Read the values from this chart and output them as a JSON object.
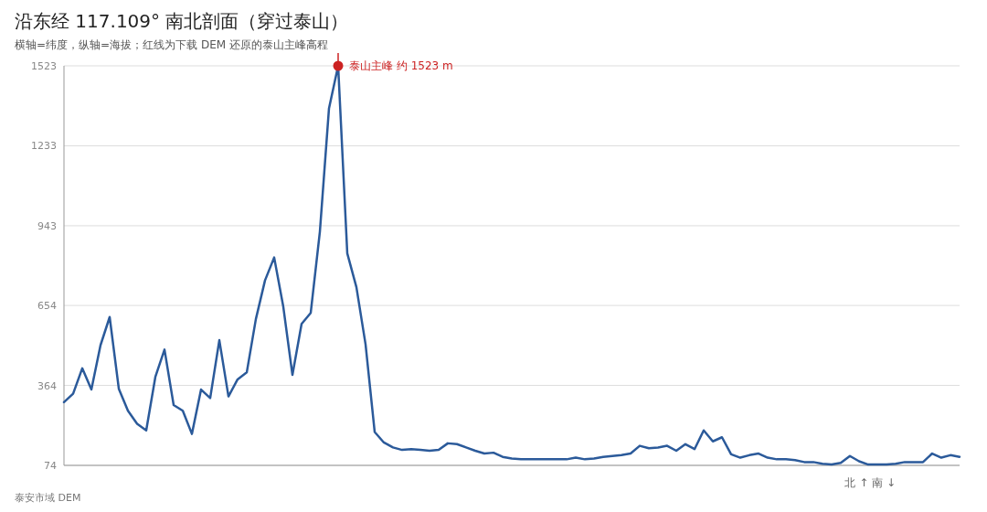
{
  "chart_data": {
    "type": "line",
    "title": "沿东经 117.109°  南北剖面（穿过泰山）",
    "subtitle": "横轴=纬度，纵轴=海拔；红线为下载 DEM 还原的泰山主峰高程",
    "xlabel": "北 ↑  南 ↓",
    "annotations": [
      "泰安市域 DEM"
    ],
    "categories": [
      null,
      null,
      null,
      null,
      null,
      null,
      null,
      null,
      null,
      null,
      null,
      null,
      null,
      null,
      null,
      null,
      null,
      null,
      null,
      null,
      null,
      null,
      null,
      null,
      null,
      null,
      null,
      null,
      null,
      null,
      null,
      null,
      null,
      null,
      null,
      null,
      null,
      null,
      null,
      null,
      null,
      null,
      null,
      null,
      null,
      null,
      null,
      null,
      null,
      null,
      null,
      null,
      null,
      null,
      null,
      null,
      null,
      null,
      null,
      null,
      null,
      null,
      null,
      null,
      null,
      null,
      null,
      null,
      null,
      null,
      null,
      null,
      null,
      null,
      null,
      null,
      null,
      null,
      null,
      null,
      null,
      null,
      null,
      null,
      null,
      null,
      null,
      null,
      null,
      null,
      null,
      null,
      null,
      null,
      null,
      null,
      null,
      null,
      null
    ],
    "series": [
      {
        "color": "#2b5a9a",
        "values": [
          303,
          334,
          426,
          349,
          510,
          612,
          352,
          272,
          225,
          201,
          395,
          494,
          293,
          272,
          188,
          349,
          318,
          528,
          324,
          386,
          411,
          605,
          745,
          828,
          649,
          402,
          587,
          627,
          921,
          1369,
          1523,
          843,
          720,
          513,
          195,
          157,
          139,
          130,
          133,
          130,
          127,
          130,
          154,
          151,
          139,
          127,
          117,
          120,
          105,
          99,
          96,
          96,
          96,
          96,
          96,
          96,
          102,
          96,
          99,
          105,
          108,
          111,
          117,
          145,
          136,
          139,
          145,
          127,
          151,
          133,
          201,
          161,
          176,
          114,
          102,
          111,
          117,
          102,
          96,
          96,
          93,
          86,
          86,
          80,
          77,
          83,
          108,
          89,
          77,
          77,
          77,
          80,
          86,
          86,
          86,
          117,
          102,
          111,
          105
        ]
      },
      {
        "type": "scatter",
        "color": "#cc2222",
        "values": [
          null,
          null,
          null,
          null,
          null,
          null,
          null,
          null,
          null,
          null,
          null,
          null,
          null,
          null,
          null,
          null,
          null,
          null,
          null,
          null,
          null,
          null,
          null,
          null,
          null,
          null,
          null,
          null,
          null,
          null,
          1523,
          null,
          null,
          null,
          null,
          null,
          null,
          null,
          null,
          null,
          null,
          null,
          null,
          null,
          null,
          null,
          null,
          null,
          null,
          null,
          null,
          null,
          null,
          null,
          null,
          null,
          null,
          null,
          null,
          null,
          null,
          null,
          null,
          null,
          null,
          null,
          null,
          null,
          null,
          null,
          null,
          null,
          null,
          null,
          null,
          null,
          null,
          null,
          null,
          null,
          null,
          null,
          null,
          null,
          null,
          null,
          null,
          null,
          null,
          null,
          null,
          null,
          null,
          null,
          null,
          null,
          null,
          null,
          null
        ],
        "value_labels": [
          null,
          null,
          null,
          null,
          null,
          null,
          null,
          null,
          null,
          null,
          null,
          null,
          null,
          null,
          null,
          null,
          null,
          null,
          null,
          null,
          null,
          null,
          null,
          null,
          null,
          null,
          null,
          null,
          null,
          null,
          "泰山主峰 约 1523 m",
          null,
          null,
          null,
          null,
          null,
          null,
          null,
          null,
          null,
          null,
          null,
          null,
          null,
          null,
          null,
          null,
          null,
          null,
          null,
          null,
          null,
          null,
          null,
          null,
          null,
          null,
          null,
          null,
          null,
          null,
          null,
          null,
          null,
          null,
          null,
          null,
          null,
          null,
          null,
          null,
          null,
          null,
          null,
          null,
          null,
          null,
          null,
          null,
          null,
          null,
          null,
          null,
          null,
          null,
          null,
          null,
          null,
          null,
          null,
          null,
          null,
          null,
          null,
          null,
          null,
          null,
          null,
          null
        ]
      }
    ],
    "ylim": [
      74,
      1523
    ],
    "yticks": [
      74,
      364,
      654,
      943,
      1233,
      1523
    ],
    "grid": "y"
  }
}
